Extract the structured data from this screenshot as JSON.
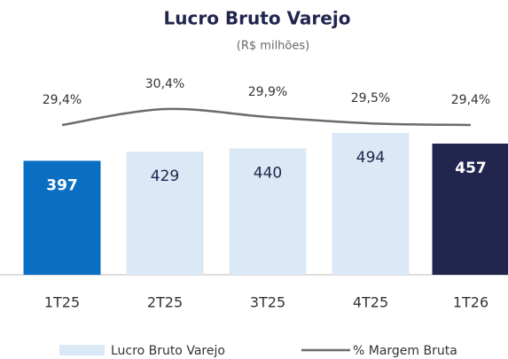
{
  "chart_data": {
    "type": "bar",
    "title": "Lucro Bruto Varejo",
    "subtitle": "(R$ milhões)",
    "categories": [
      "1T25",
      "2T25",
      "3T25",
      "4T25",
      "1T26"
    ],
    "series": [
      {
        "name": "Lucro Bruto Varejo",
        "type": "bar",
        "color": "#dbe8f6",
        "colors": [
          "#0a6fc2",
          "#dbe8f6",
          "#dbe8f6",
          "#dbe8f6",
          "#22264f"
        ],
        "values": [
          397,
          429,
          440,
          494,
          457
        ]
      },
      {
        "name": "% Margem Bruta",
        "type": "line",
        "axis": "y2",
        "color": "#6b6b6b",
        "values": [
          29.4,
          30.4,
          29.9,
          29.5,
          29.4
        ],
        "value_labels": [
          "29,4%",
          "30,4%",
          "29,9%",
          "29,5%",
          "29,4%"
        ]
      }
    ]
  }
}
